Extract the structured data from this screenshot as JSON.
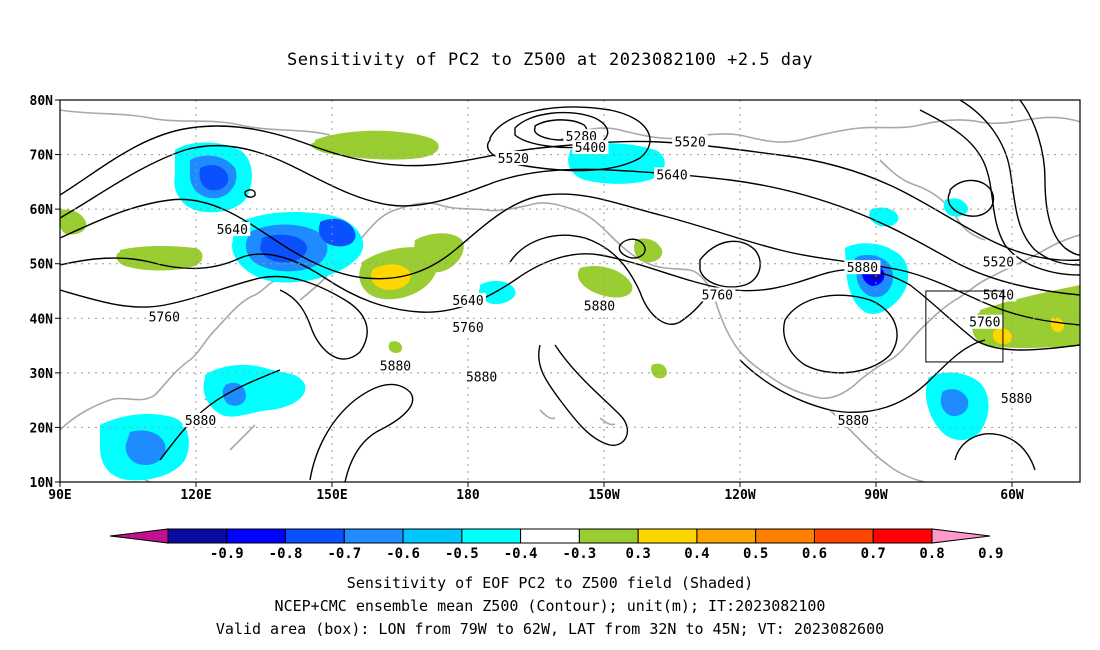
{
  "title": "Sensitivity of PC2 to Z500 at 2023082100 +2.5 day",
  "axes": {
    "lat_labels": [
      "80N",
      "70N",
      "60N",
      "50N",
      "40N",
      "30N",
      "20N",
      "10N"
    ],
    "lon_labels": [
      "90E",
      "120E",
      "150E",
      "180",
      "150W",
      "120W",
      "90W",
      "60W"
    ],
    "lat_values": [
      80,
      70,
      60,
      50,
      40,
      30,
      20,
      10
    ],
    "lon_values": [
      90,
      120,
      150,
      180,
      210,
      240,
      270,
      300
    ],
    "lon_range": [
      90,
      315
    ],
    "lat_range": [
      10,
      80
    ]
  },
  "contour_labels": [
    {
      "text": "5280",
      "lon": 205,
      "lat": 73
    },
    {
      "text": "5400",
      "lon": 207,
      "lat": 71
    },
    {
      "text": "5520",
      "lon": 190,
      "lat": 69
    },
    {
      "text": "5520",
      "lon": 229,
      "lat": 72
    },
    {
      "text": "5640",
      "lon": 225,
      "lat": 66
    },
    {
      "text": "5640",
      "lon": 128,
      "lat": 56
    },
    {
      "text": "5640",
      "lon": 180,
      "lat": 43
    },
    {
      "text": "5760",
      "lon": 113,
      "lat": 40
    },
    {
      "text": "5760",
      "lon": 180,
      "lat": 38
    },
    {
      "text": "5760",
      "lon": 235,
      "lat": 44
    },
    {
      "text": "5880",
      "lon": 209,
      "lat": 42
    },
    {
      "text": "5880",
      "lon": 267,
      "lat": 49
    },
    {
      "text": "5880",
      "lon": 164,
      "lat": 31
    },
    {
      "text": "5880",
      "lon": 183,
      "lat": 29
    },
    {
      "text": "5880",
      "lon": 121,
      "lat": 21
    },
    {
      "text": "5880",
      "lon": 265,
      "lat": 21
    },
    {
      "text": "5880",
      "lon": 301,
      "lat": 25
    },
    {
      "text": "5520",
      "lon": 297,
      "lat": 50
    },
    {
      "text": "5640",
      "lon": 297,
      "lat": 44
    },
    {
      "text": "5760",
      "lon": 294,
      "lat": 39
    }
  ],
  "valid_box": {
    "lon_min": 281,
    "lon_max": 298,
    "lat_min": 32,
    "lat_max": 45
  },
  "colorbar": {
    "labels": [
      "-0.9",
      "-0.8",
      "-0.7",
      "-0.6",
      "-0.5",
      "-0.4",
      "-0.3",
      "0.3",
      "0.4",
      "0.5",
      "0.6",
      "0.7",
      "0.8",
      "0.9"
    ],
    "colors": [
      "#c0118f",
      "#0a0aa0",
      "#0000ff",
      "#0a50ff",
      "#1e8cff",
      "#00c8ff",
      "#00ffff",
      "#ffffff",
      "#9acd32",
      "#ffd700",
      "#ffa500",
      "#ff7f00",
      "#ff4500",
      "#ff0000",
      "#ff99cc"
    ]
  },
  "captions": {
    "line1": "Sensitivity of EOF PC2 to Z500 field (Shaded)",
    "line2": "NCEP+CMC ensemble mean Z500 (Contour); unit(m); IT:2023082100",
    "line3": "Valid area (box): LON from 79W to 62W, LAT from 32N to 45N; VT: 2023082600"
  }
}
